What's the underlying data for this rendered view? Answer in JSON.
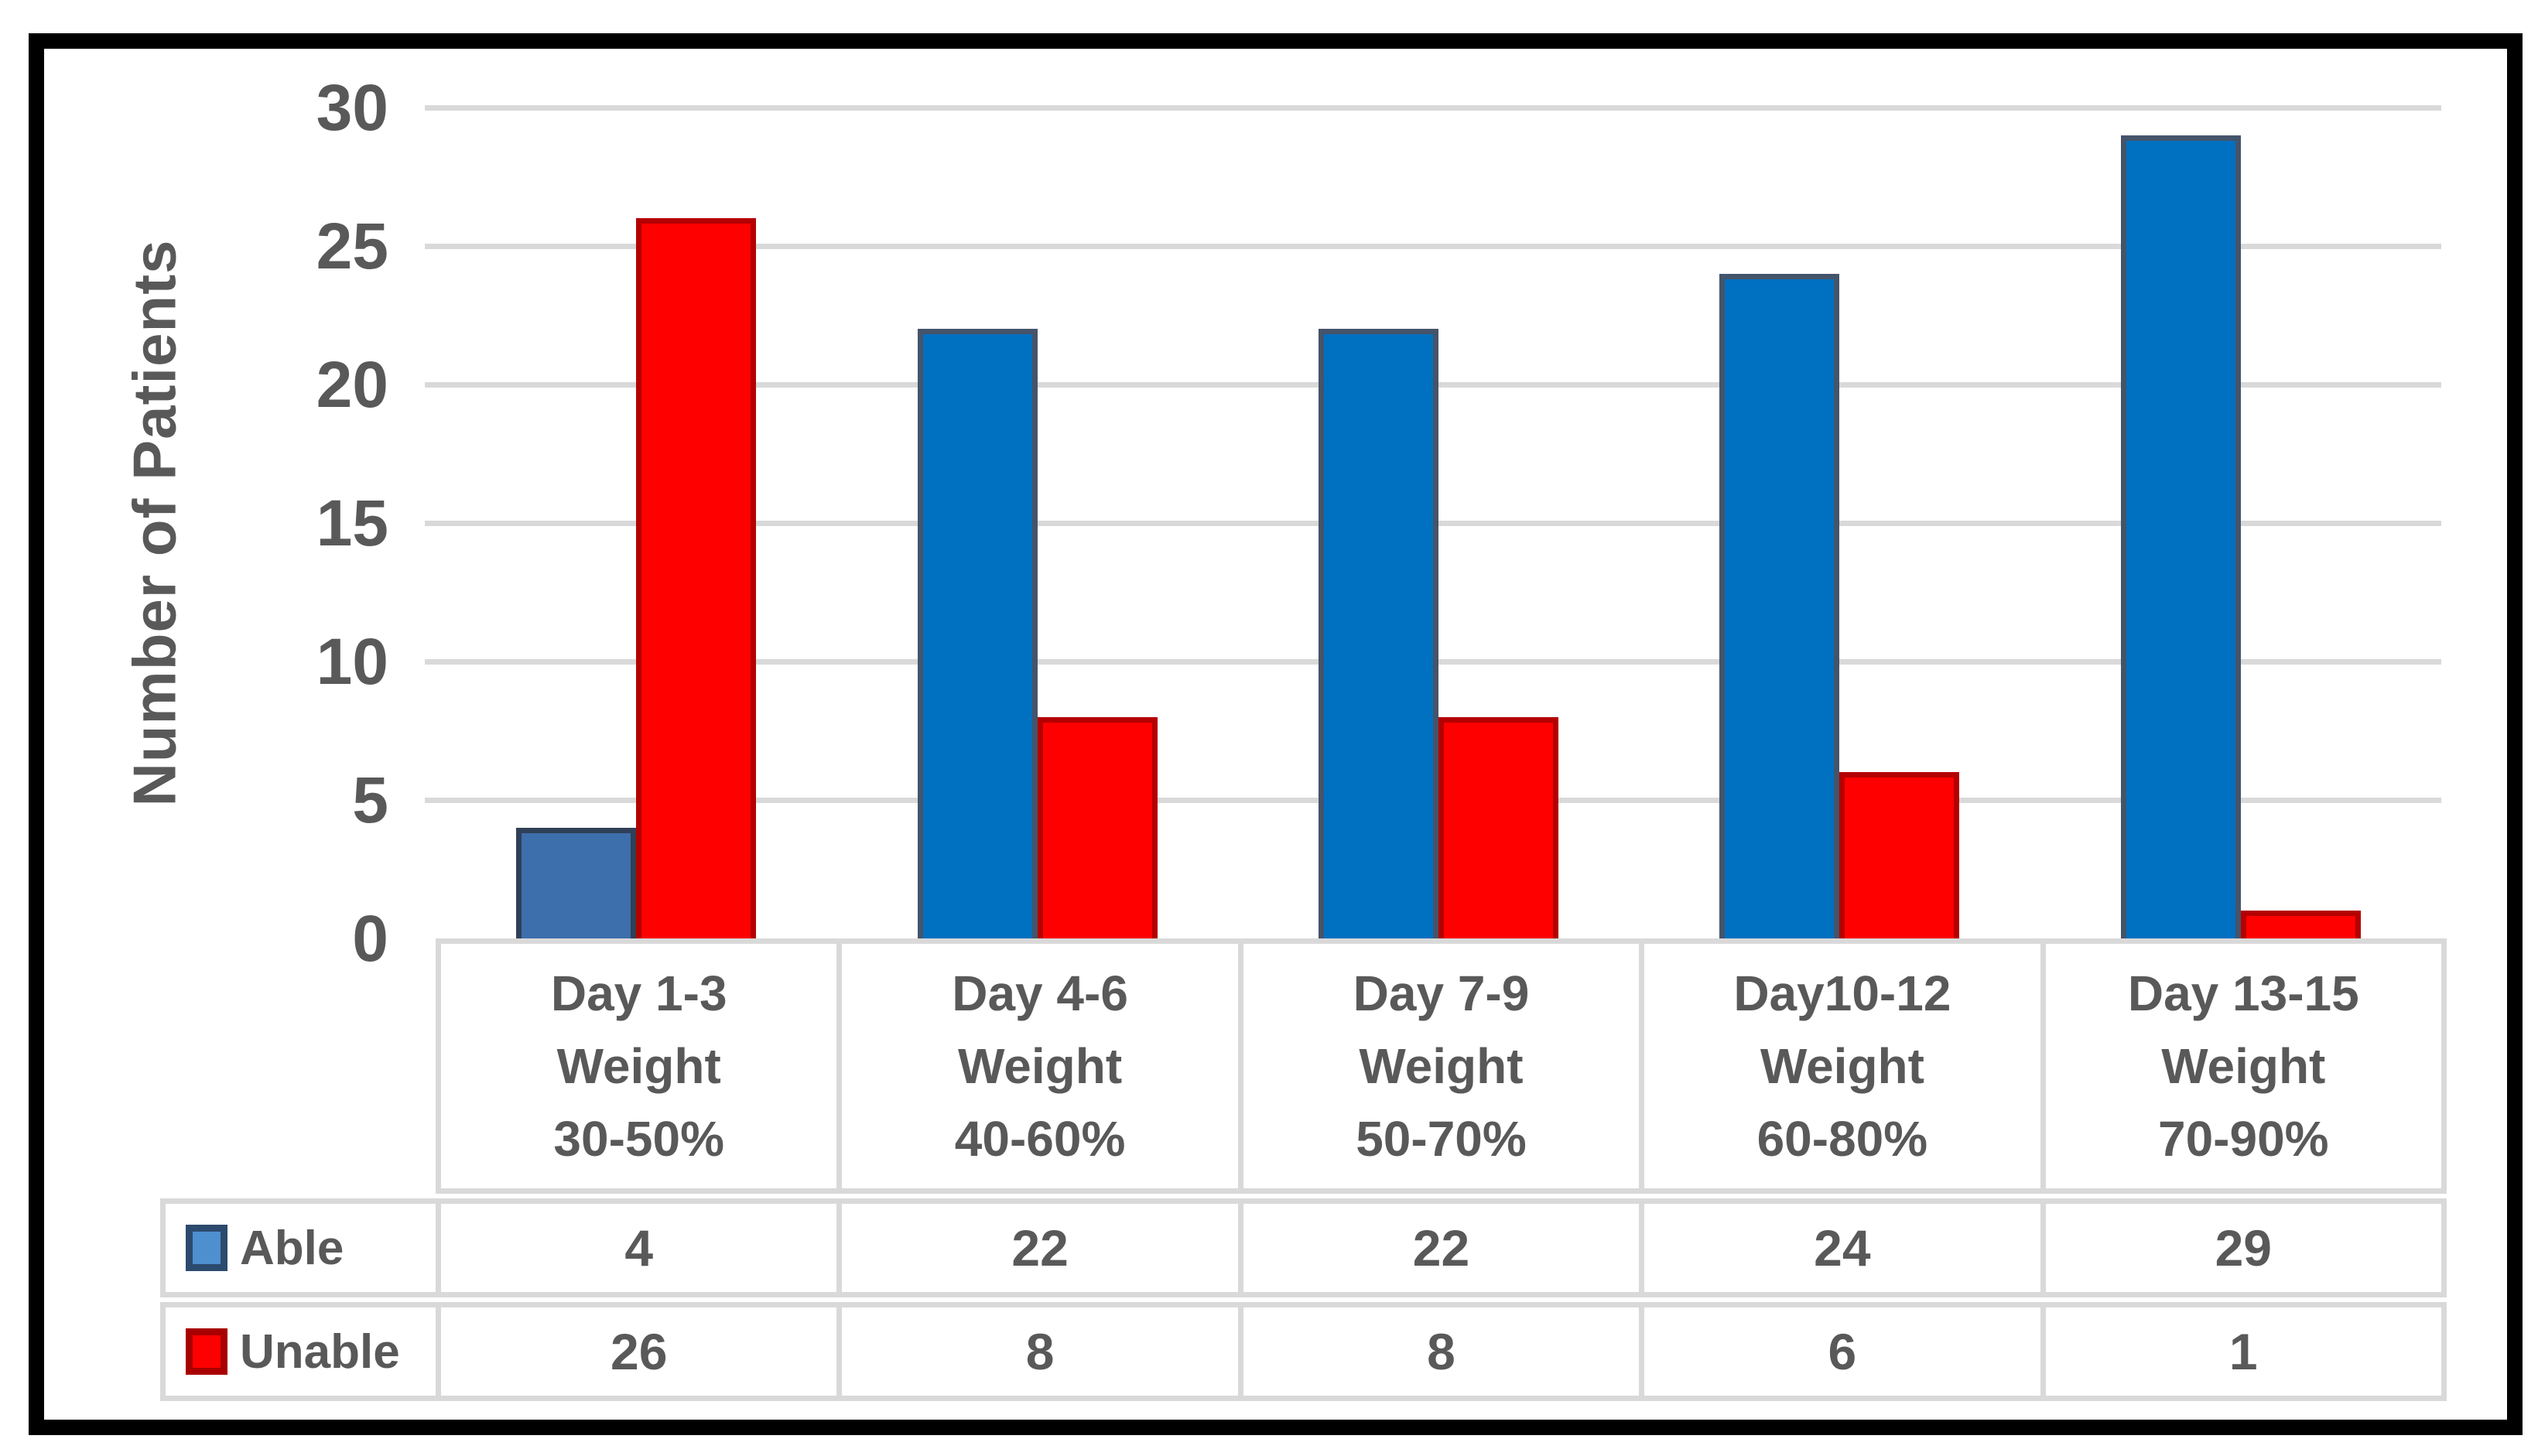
{
  "chart_data": {
    "type": "bar",
    "title": "",
    "xlabel": "",
    "ylabel": "Number of Patients",
    "ylim": [
      0,
      30
    ],
    "ytick_step": 5,
    "yticks": [
      0,
      5,
      10,
      15,
      20,
      25,
      30
    ],
    "grid": "horizontal-on",
    "legend_position": "table-left",
    "categories": [
      [
        "Day 1-3",
        "Weight",
        "30-50%"
      ],
      [
        "Day 4-6",
        "Weight",
        "40-60%"
      ],
      [
        "Day 7-9",
        "Weight",
        "50-70%"
      ],
      [
        "Day10-12",
        "Weight",
        "60-80%"
      ],
      [
        "Day 13-15",
        "Weight",
        "70-90%"
      ]
    ],
    "series": [
      {
        "name": "Able",
        "values": [
          4,
          22,
          22,
          24,
          29
        ],
        "fill": "#0070C0",
        "border": "#44546A",
        "legend_fill": "#4E8FD0",
        "legend_border": "#2C4A6E",
        "point_overrides": [
          {
            "index": 0,
            "fill": "#3D6FAC",
            "border": "#2F4057"
          }
        ]
      },
      {
        "name": "Unable",
        "values": [
          26,
          8,
          8,
          6,
          1
        ],
        "fill": "#FF0000",
        "border": "#B40000",
        "legend_fill": "#FF0000",
        "legend_border": "#A80000",
        "point_overrides": []
      }
    ],
    "colors": {
      "gridline": "#D9D9D9",
      "table_border": "#D9D9D9",
      "text": "#595959",
      "frame": "#000000",
      "background": "#FFFFFF"
    }
  }
}
